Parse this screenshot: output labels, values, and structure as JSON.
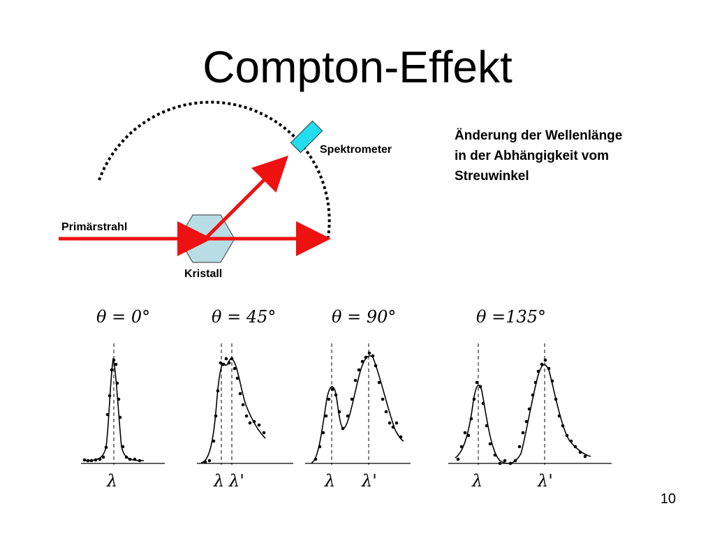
{
  "slide": {
    "title": "Compton-Effekt",
    "description": [
      "Änderung der Wellenlänge",
      "in der Abhängigkeit vom",
      "Streuwinkel"
    ],
    "page_number": "10"
  },
  "setup": {
    "primary_beam_label": "Primärstrahl",
    "crystal_label": "Kristall",
    "spectrometer_label": "Spektrometer",
    "colors": {
      "beam": "#ee1111",
      "crystal": "#b8dde4",
      "spectrometer": "#22ddee",
      "arc": "#000000"
    }
  },
  "spectra": [
    {
      "angle_label": "θ = 0°",
      "axis_labels": [
        "λ"
      ]
    },
    {
      "angle_label": "θ = 45°",
      "axis_labels": [
        "λ",
        "λ'"
      ]
    },
    {
      "angle_label": "θ = 90°",
      "axis_labels": [
        "λ",
        "λ'"
      ]
    },
    {
      "angle_label": "θ =135°",
      "axis_labels": [
        "λ",
        "λ'"
      ]
    }
  ]
}
